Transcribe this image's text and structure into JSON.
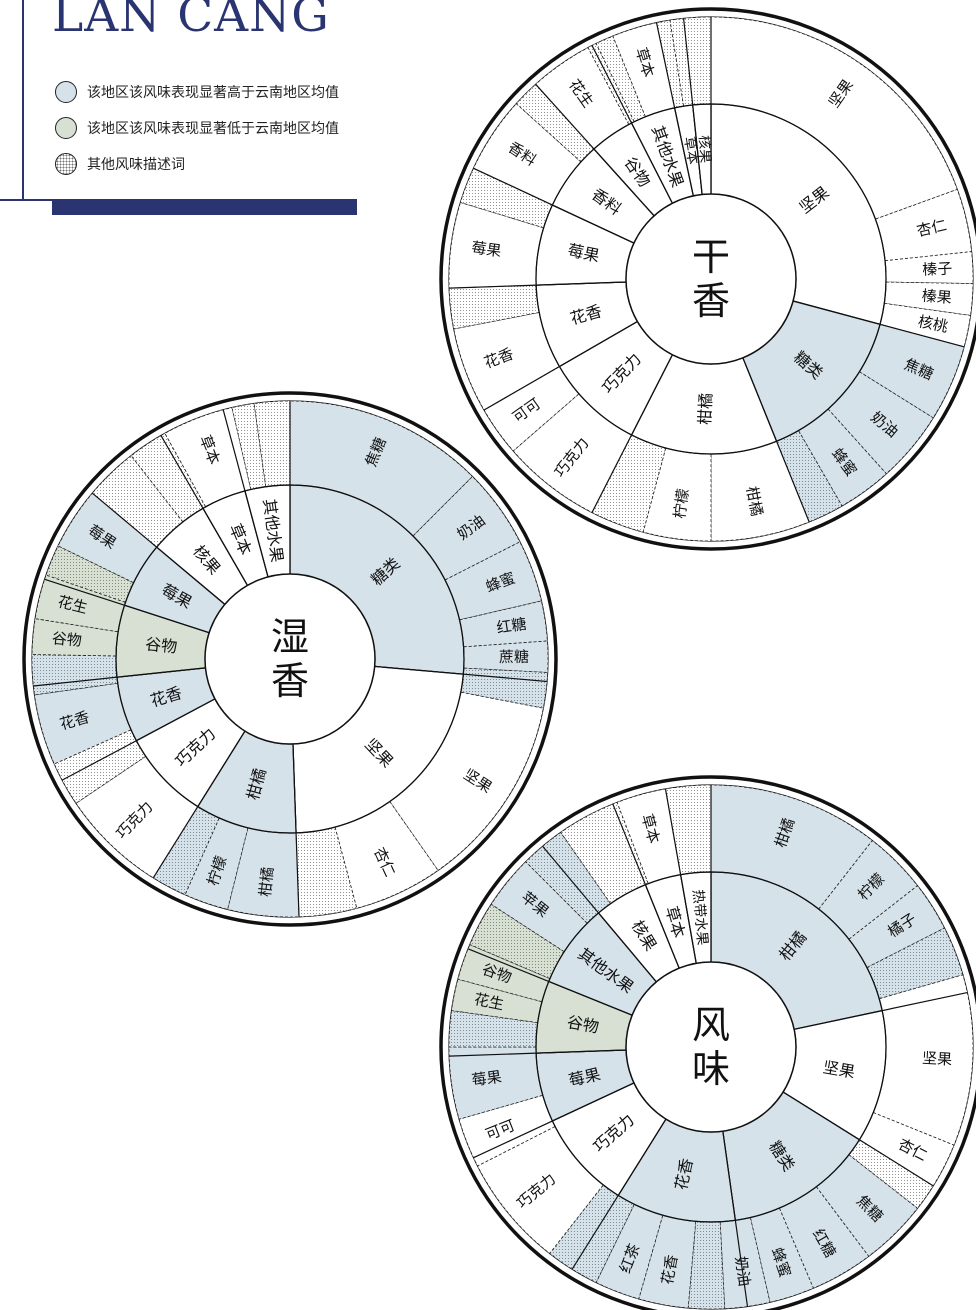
{
  "title": "LAN CANG",
  "colors": {
    "high": "#d6e2ea",
    "low": "#d7e0d3",
    "other": "#ffffff",
    "accent": "#2a3470",
    "ink": "#111111"
  },
  "legend": [
    {
      "label": "该地区该风味表现显著高于云南地区均值",
      "kind": "high"
    },
    {
      "label": "该地区该风味表现显著低于云南地区均值",
      "kind": "low"
    },
    {
      "label": "其他风味描述词",
      "kind": "dots"
    }
  ],
  "wheels": [
    {
      "name": "dry-aroma-wheel",
      "center_line1": "干",
      "center_line2": "香",
      "inner": [
        {
          "label": "坚果",
          "kind": "white",
          "end": 105
        },
        {
          "label": "糖类",
          "kind": "high",
          "end": 158
        },
        {
          "label": "柑橘",
          "kind": "white",
          "end": 207
        },
        {
          "label": "巧克力",
          "kind": "white",
          "end": 240
        },
        {
          "label": "花香",
          "kind": "white",
          "end": 268
        },
        {
          "label": "莓果",
          "kind": "white",
          "end": 295
        },
        {
          "label": "香料",
          "kind": "white",
          "end": 318
        },
        {
          "label": "谷物",
          "kind": "white",
          "end": 333
        },
        {
          "label": "其他水果",
          "kind": "white",
          "end": 348
        },
        {
          "label": "草本",
          "kind": "white",
          "end": 354
        },
        {
          "label": "核果",
          "kind": "white",
          "end": 360
        }
      ],
      "outer": [
        {
          "label": "坚果",
          "kind": "white",
          "end": 70
        },
        {
          "label": "杏仁",
          "kind": "white",
          "end": 84
        },
        {
          "label": "榛子",
          "kind": "white",
          "end": 91
        },
        {
          "label": "榛果",
          "kind": "white",
          "end": 98
        },
        {
          "label": "核桃",
          "kind": "white",
          "end": 105
        },
        {
          "label": "焦糖",
          "kind": "high",
          "end": 122
        },
        {
          "label": "奶油",
          "kind": "high",
          "end": 138
        },
        {
          "label": "蜂蜜",
          "kind": "high",
          "end": 150
        },
        {
          "label": "",
          "kind": "dots-high",
          "end": 158
        },
        {
          "label": "柑橘",
          "kind": "white",
          "end": 180
        },
        {
          "label": "柠檬",
          "kind": "white",
          "end": 195
        },
        {
          "label": "",
          "kind": "dots",
          "end": 207
        },
        {
          "label": "巧克力",
          "kind": "white",
          "end": 229
        },
        {
          "label": "可可",
          "kind": "white",
          "end": 240
        },
        {
          "label": "花香",
          "kind": "white",
          "end": 259
        },
        {
          "label": "",
          "kind": "dots",
          "end": 268
        },
        {
          "label": "莓果",
          "kind": "white",
          "end": 287
        },
        {
          "label": "",
          "kind": "dots",
          "end": 295
        },
        {
          "label": "香料",
          "kind": "white",
          "end": 312
        },
        {
          "label": "",
          "kind": "dots",
          "end": 318
        },
        {
          "label": "花生",
          "kind": "white",
          "end": 332
        },
        {
          "label": "",
          "kind": "dots",
          "end": 334
        },
        {
          "label": "",
          "kind": "dots",
          "end": 338
        },
        {
          "label": "草本",
          "kind": "white",
          "end": 348
        },
        {
          "label": "",
          "kind": "dots",
          "end": 351
        },
        {
          "label": "",
          "kind": "dots",
          "end": 360
        }
      ]
    },
    {
      "name": "wet-aroma-wheel",
      "center_line1": "湿",
      "center_line2": "香",
      "inner": [
        {
          "label": "糖类",
          "kind": "high",
          "end": 95
        },
        {
          "label": "坚果",
          "kind": "white",
          "end": 178
        },
        {
          "label": "柑橘",
          "kind": "high",
          "end": 212
        },
        {
          "label": "巧克力",
          "kind": "white",
          "end": 242
        },
        {
          "label": "花香",
          "kind": "high",
          "end": 264
        },
        {
          "label": "谷物",
          "kind": "low",
          "end": 288
        },
        {
          "label": "莓果",
          "kind": "high",
          "end": 310
        },
        {
          "label": "核果",
          "kind": "white",
          "end": 330
        },
        {
          "label": "草本",
          "kind": "white",
          "end": 345
        },
        {
          "label": "其他水果",
          "kind": "white",
          "end": 360
        }
      ],
      "outer": [
        {
          "label": "焦糖",
          "kind": "high",
          "end": 45
        },
        {
          "label": "奶油",
          "kind": "high",
          "end": 63
        },
        {
          "label": "蜂蜜",
          "kind": "high",
          "end": 77
        },
        {
          "label": "红糖",
          "kind": "high",
          "end": 86
        },
        {
          "label": "蔗糖",
          "kind": "high",
          "end": 93
        },
        {
          "label": "",
          "kind": "dots-high",
          "end": 101
        },
        {
          "label": "坚果",
          "kind": "white",
          "end": 145
        },
        {
          "label": "杏仁",
          "kind": "white",
          "end": 165
        },
        {
          "label": "",
          "kind": "dots",
          "end": 178
        },
        {
          "label": "柑橘",
          "kind": "high",
          "end": 194
        },
        {
          "label": "柠檬",
          "kind": "high",
          "end": 204
        },
        {
          "label": "",
          "kind": "dots-high",
          "end": 212
        },
        {
          "label": "巧克力",
          "kind": "white",
          "end": 236
        },
        {
          "label": "",
          "kind": "dots",
          "end": 246
        },
        {
          "label": "花香",
          "kind": "high",
          "end": 262
        },
        {
          "label": "",
          "kind": "dots-high",
          "end": 271
        },
        {
          "label": "谷物",
          "kind": "low",
          "end": 279
        },
        {
          "label": "花生",
          "kind": "low",
          "end": 289
        },
        {
          "label": "",
          "kind": "dots-low",
          "end": 296
        },
        {
          "label": "莓果",
          "kind": "high",
          "end": 310
        },
        {
          "label": "",
          "kind": "dots",
          "end": 322
        },
        {
          "label": "",
          "kind": "dots",
          "end": 331
        },
        {
          "label": "草本",
          "kind": "white",
          "end": 347
        },
        {
          "label": "",
          "kind": "dots",
          "end": 352
        },
        {
          "label": "",
          "kind": "dots",
          "end": 360
        }
      ]
    },
    {
      "name": "flavor-wheel",
      "center_line1": "风",
      "center_line2": "味",
      "inner": [
        {
          "label": "柑橘",
          "kind": "high",
          "end": 78
        },
        {
          "label": "坚果",
          "kind": "white",
          "end": 122
        },
        {
          "label": "糖类",
          "kind": "high",
          "end": 172
        },
        {
          "label": "花香",
          "kind": "high",
          "end": 212
        },
        {
          "label": "巧克力",
          "kind": "white",
          "end": 245
        },
        {
          "label": "莓果",
          "kind": "high",
          "end": 268
        },
        {
          "label": "谷物",
          "kind": "low",
          "end": 292
        },
        {
          "label": "其他水果",
          "kind": "high",
          "end": 320
        },
        {
          "label": "核果",
          "kind": "white",
          "end": 338
        },
        {
          "label": "草本",
          "kind": "white",
          "end": 350
        },
        {
          "label": "热带水果",
          "kind": "white",
          "end": 360
        }
      ],
      "outer": [
        {
          "label": "柑橘",
          "kind": "high",
          "end": 38
        },
        {
          "label": "柠檬",
          "kind": "high",
          "end": 52
        },
        {
          "label": "橘子",
          "kind": "high",
          "end": 63
        },
        {
          "label": "",
          "kind": "dots-high",
          "end": 74
        },
        {
          "label": "坚果",
          "kind": "white",
          "end": 112
        },
        {
          "label": "杏仁",
          "kind": "white",
          "end": 122
        },
        {
          "label": "",
          "kind": "dots",
          "end": 128
        },
        {
          "label": "焦糖",
          "kind": "high",
          "end": 143
        },
        {
          "label": "红糖",
          "kind": "high",
          "end": 157
        },
        {
          "label": "蜂蜜",
          "kind": "high",
          "end": 167
        },
        {
          "label": "奶油",
          "kind": "high",
          "end": 177
        },
        {
          "label": "",
          "kind": "dots-high",
          "end": 185
        },
        {
          "label": "花香",
          "kind": "high",
          "end": 196
        },
        {
          "label": "红茶",
          "kind": "high",
          "end": 206
        },
        {
          "label": "",
          "kind": "dots-high",
          "end": 218
        },
        {
          "label": "巧克力",
          "kind": "white",
          "end": 243
        },
        {
          "label": "可可",
          "kind": "white",
          "end": 254
        },
        {
          "label": "莓果",
          "kind": "high",
          "end": 270
        },
        {
          "label": "",
          "kind": "dots-high",
          "end": 278
        },
        {
          "label": "花生",
          "kind": "low",
          "end": 285
        },
        {
          "label": "谷物",
          "kind": "low",
          "end": 293
        },
        {
          "label": "",
          "kind": "dots-low",
          "end": 303
        },
        {
          "label": "苹果",
          "kind": "high",
          "end": 315
        },
        {
          "label": "",
          "kind": "dots-high",
          "end": 325
        },
        {
          "label": "",
          "kind": "dots",
          "end": 339
        },
        {
          "label": "草本",
          "kind": "white",
          "end": 350
        },
        {
          "label": "",
          "kind": "dots",
          "end": 360
        }
      ]
    }
  ]
}
